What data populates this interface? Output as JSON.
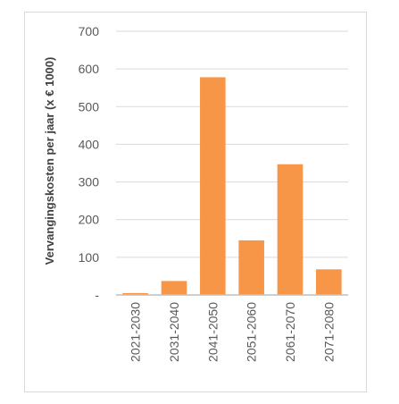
{
  "chart_data": {
    "type": "bar",
    "title": "",
    "xlabel": "",
    "ylabel": "Vervangingskosten per jaar (x € 1000)",
    "categories": [
      "2021-2030",
      "2031-2040",
      "2041-2050",
      "2051-2060",
      "2061-2070",
      "2071-2080"
    ],
    "values": [
      5,
      37,
      578,
      145,
      347,
      68
    ],
    "ylim": [
      0,
      700
    ],
    "yticks": [
      0,
      100,
      200,
      300,
      400,
      500,
      600,
      700
    ],
    "ytick_labels": [
      "-",
      "100",
      "200",
      "300",
      "400",
      "500",
      "600",
      "700"
    ],
    "grid": true,
    "legend": "none",
    "bar_color": "#F79646",
    "grid_color": "#d9d9d9",
    "axis_color": "#bfbfbf"
  }
}
